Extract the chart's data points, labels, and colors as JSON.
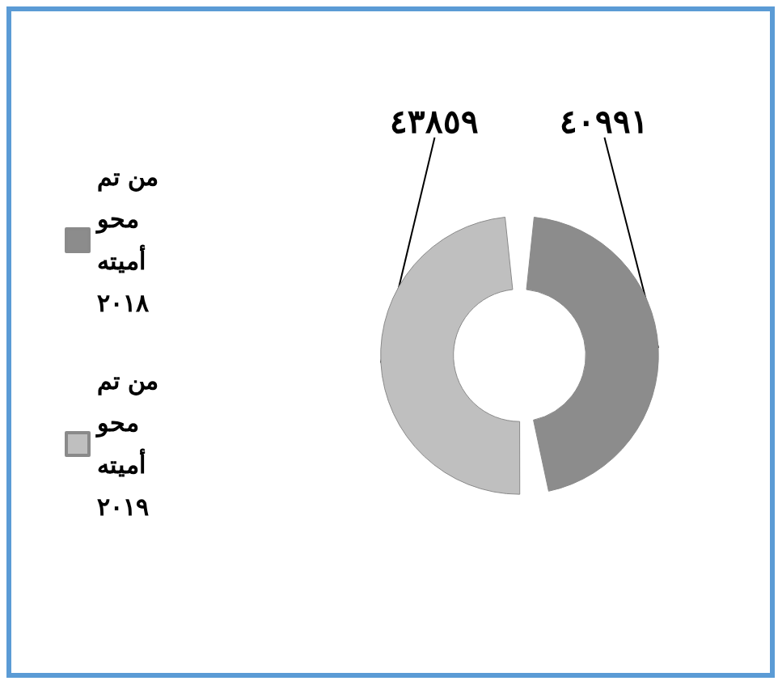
{
  "chart_data": {
    "type": "donut",
    "categories": [
      "من تم محو أميته ٢٠١٨",
      "من تم محو أميته ٢٠١٩"
    ],
    "values": [
      40991,
      43859
    ],
    "colors": [
      "#8c8c8c",
      "#bfbfbf"
    ],
    "value_labels": [
      "٤٠٩٩١",
      "٤٣٨٥٩"
    ],
    "legend": "left"
  }
}
